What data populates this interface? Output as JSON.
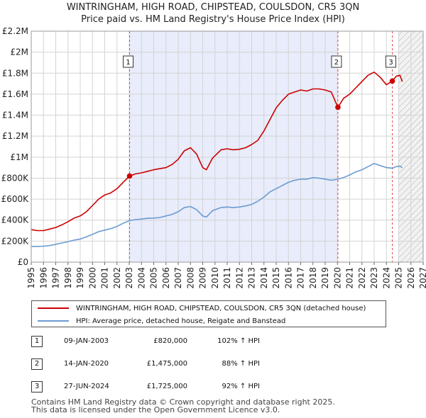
{
  "title": {
    "line1": "WINTRINGHAM, HIGH ROAD, CHIPSTEAD, COULSDON, CR5 3QN",
    "line2": "Price paid vs. HM Land Registry's House Price Index (HPI)"
  },
  "colors": {
    "property": "#cc0000",
    "hpi": "#6b9bd1",
    "shade": "#e8ecfb",
    "vline": "#dd4444"
  },
  "chart_data": {
    "type": "line",
    "title": "Price paid vs. HM Land Registry's House Price Index (HPI)",
    "xlabel": "",
    "ylabel": "",
    "xlim": [
      1995,
      2027
    ],
    "ylim": [
      0,
      2200000
    ],
    "x_ticks": [
      "1995",
      "1996",
      "1997",
      "1998",
      "1999",
      "2000",
      "2001",
      "2002",
      "2003",
      "2004",
      "2005",
      "2006",
      "2007",
      "2008",
      "2009",
      "2010",
      "2011",
      "2012",
      "2013",
      "2014",
      "2015",
      "2016",
      "2017",
      "2018",
      "2019",
      "2020",
      "2021",
      "2022",
      "2023",
      "2024",
      "2025",
      "2026",
      "2027"
    ],
    "y_ticks": [
      {
        "value": 0,
        "label": "£0"
      },
      {
        "value": 200000,
        "label": "£200K"
      },
      {
        "value": 400000,
        "label": "£400K"
      },
      {
        "value": 600000,
        "label": "£600K"
      },
      {
        "value": 800000,
        "label": "£800K"
      },
      {
        "value": 1000000,
        "label": "£1M"
      },
      {
        "value": 1200000,
        "label": "£1.2M"
      },
      {
        "value": 1400000,
        "label": "£1.4M"
      },
      {
        "value": 1600000,
        "label": "£1.6M"
      },
      {
        "value": 1800000,
        "label": "£1.8M"
      },
      {
        "value": 2000000,
        "label": "£2M"
      },
      {
        "value": 2200000,
        "label": "£2.2M"
      }
    ],
    "shaded_range": [
      2003.03,
      2020.04
    ],
    "hatched_from": 2025.0,
    "series": [
      {
        "name": "WINTRINGHAM, HIGH ROAD, CHIPSTEAD, COULSDON, CR5 3QN (detached house)",
        "color": "#cc0000",
        "points": [
          [
            1995.0,
            310000
          ],
          [
            1995.5,
            300000
          ],
          [
            1996.0,
            300000
          ],
          [
            1996.5,
            315000
          ],
          [
            1997.0,
            330000
          ],
          [
            1997.5,
            355000
          ],
          [
            1998.0,
            385000
          ],
          [
            1998.5,
            420000
          ],
          [
            1999.0,
            440000
          ],
          [
            1999.5,
            480000
          ],
          [
            2000.0,
            540000
          ],
          [
            2000.5,
            600000
          ],
          [
            2001.0,
            640000
          ],
          [
            2001.5,
            660000
          ],
          [
            2002.0,
            700000
          ],
          [
            2002.5,
            760000
          ],
          [
            2003.03,
            820000
          ],
          [
            2003.5,
            840000
          ],
          [
            2004.0,
            850000
          ],
          [
            2004.5,
            865000
          ],
          [
            2005.0,
            880000
          ],
          [
            2005.5,
            890000
          ],
          [
            2006.0,
            900000
          ],
          [
            2006.5,
            930000
          ],
          [
            2007.0,
            980000
          ],
          [
            2007.5,
            1060000
          ],
          [
            2008.0,
            1090000
          ],
          [
            2008.5,
            1030000
          ],
          [
            2009.0,
            900000
          ],
          [
            2009.3,
            880000
          ],
          [
            2009.8,
            990000
          ],
          [
            2010.5,
            1070000
          ],
          [
            2011.0,
            1080000
          ],
          [
            2011.5,
            1070000
          ],
          [
            2012.0,
            1075000
          ],
          [
            2012.5,
            1090000
          ],
          [
            2013.0,
            1120000
          ],
          [
            2013.5,
            1160000
          ],
          [
            2014.0,
            1250000
          ],
          [
            2014.5,
            1360000
          ],
          [
            2015.0,
            1470000
          ],
          [
            2015.5,
            1540000
          ],
          [
            2016.0,
            1600000
          ],
          [
            2016.5,
            1620000
          ],
          [
            2017.0,
            1640000
          ],
          [
            2017.5,
            1630000
          ],
          [
            2018.0,
            1650000
          ],
          [
            2018.5,
            1650000
          ],
          [
            2019.0,
            1640000
          ],
          [
            2019.5,
            1620000
          ],
          [
            2020.04,
            1475000
          ],
          [
            2020.5,
            1560000
          ],
          [
            2021.0,
            1600000
          ],
          [
            2021.5,
            1660000
          ],
          [
            2022.0,
            1720000
          ],
          [
            2022.5,
            1780000
          ],
          [
            2023.0,
            1810000
          ],
          [
            2023.5,
            1760000
          ],
          [
            2024.0,
            1690000
          ],
          [
            2024.48,
            1725000
          ],
          [
            2024.8,
            1770000
          ],
          [
            2025.1,
            1780000
          ],
          [
            2025.3,
            1720000
          ]
        ]
      },
      {
        "name": "HPI: Average price, detached house, Reigate and Banstead",
        "color": "#6b9bd1",
        "points": [
          [
            1995.0,
            150000
          ],
          [
            1995.5,
            150000
          ],
          [
            1996.0,
            152000
          ],
          [
            1996.5,
            158000
          ],
          [
            1997.0,
            170000
          ],
          [
            1997.5,
            182000
          ],
          [
            1998.0,
            195000
          ],
          [
            1998.5,
            210000
          ],
          [
            1999.0,
            220000
          ],
          [
            1999.5,
            240000
          ],
          [
            2000.0,
            265000
          ],
          [
            2000.5,
            290000
          ],
          [
            2001.0,
            305000
          ],
          [
            2001.5,
            320000
          ],
          [
            2002.0,
            340000
          ],
          [
            2002.5,
            370000
          ],
          [
            2003.0,
            395000
          ],
          [
            2003.5,
            405000
          ],
          [
            2004.0,
            410000
          ],
          [
            2004.5,
            418000
          ],
          [
            2005.0,
            420000
          ],
          [
            2005.5,
            425000
          ],
          [
            2006.0,
            440000
          ],
          [
            2006.5,
            455000
          ],
          [
            2007.0,
            480000
          ],
          [
            2007.5,
            520000
          ],
          [
            2008.0,
            530000
          ],
          [
            2008.5,
            500000
          ],
          [
            2009.0,
            440000
          ],
          [
            2009.3,
            430000
          ],
          [
            2009.8,
            490000
          ],
          [
            2010.5,
            520000
          ],
          [
            2011.0,
            525000
          ],
          [
            2011.5,
            520000
          ],
          [
            2012.0,
            525000
          ],
          [
            2012.5,
            535000
          ],
          [
            2013.0,
            550000
          ],
          [
            2013.5,
            580000
          ],
          [
            2014.0,
            620000
          ],
          [
            2014.5,
            670000
          ],
          [
            2015.0,
            700000
          ],
          [
            2015.5,
            730000
          ],
          [
            2016.0,
            760000
          ],
          [
            2016.5,
            780000
          ],
          [
            2017.0,
            790000
          ],
          [
            2017.5,
            790000
          ],
          [
            2018.0,
            805000
          ],
          [
            2018.5,
            800000
          ],
          [
            2019.0,
            790000
          ],
          [
            2019.5,
            780000
          ],
          [
            2020.0,
            790000
          ],
          [
            2020.5,
            805000
          ],
          [
            2021.0,
            830000
          ],
          [
            2021.5,
            860000
          ],
          [
            2022.0,
            880000
          ],
          [
            2022.5,
            910000
          ],
          [
            2023.0,
            940000
          ],
          [
            2023.5,
            920000
          ],
          [
            2024.0,
            900000
          ],
          [
            2024.5,
            895000
          ],
          [
            2024.8,
            910000
          ],
          [
            2025.1,
            915000
          ],
          [
            2025.3,
            900000
          ]
        ]
      }
    ],
    "sale_markers": [
      {
        "label": "1",
        "x": 2003.03,
        "y": 820000
      },
      {
        "label": "2",
        "x": 2020.04,
        "y": 1475000
      },
      {
        "label": "3",
        "x": 2024.48,
        "y": 1725000
      }
    ]
  },
  "legend": {
    "property_label": "WINTRINGHAM, HIGH ROAD, CHIPSTEAD, COULSDON, CR5 3QN (detached house)",
    "hpi_label": "HPI: Average price, detached house, Reigate and Banstead"
  },
  "transactions": [
    {
      "num": "1",
      "date": "09-JAN-2003",
      "price": "£820,000",
      "hpi": "102% ↑ HPI"
    },
    {
      "num": "2",
      "date": "14-JAN-2020",
      "price": "£1,475,000",
      "hpi": "88% ↑ HPI"
    },
    {
      "num": "3",
      "date": "27-JUN-2024",
      "price": "£1,725,000",
      "hpi": "92% ↑ HPI"
    }
  ],
  "footer": {
    "line1": "Contains HM Land Registry data © Crown copyright and database right 2025.",
    "line2": "This data is licensed under the Open Government Licence v3.0."
  }
}
